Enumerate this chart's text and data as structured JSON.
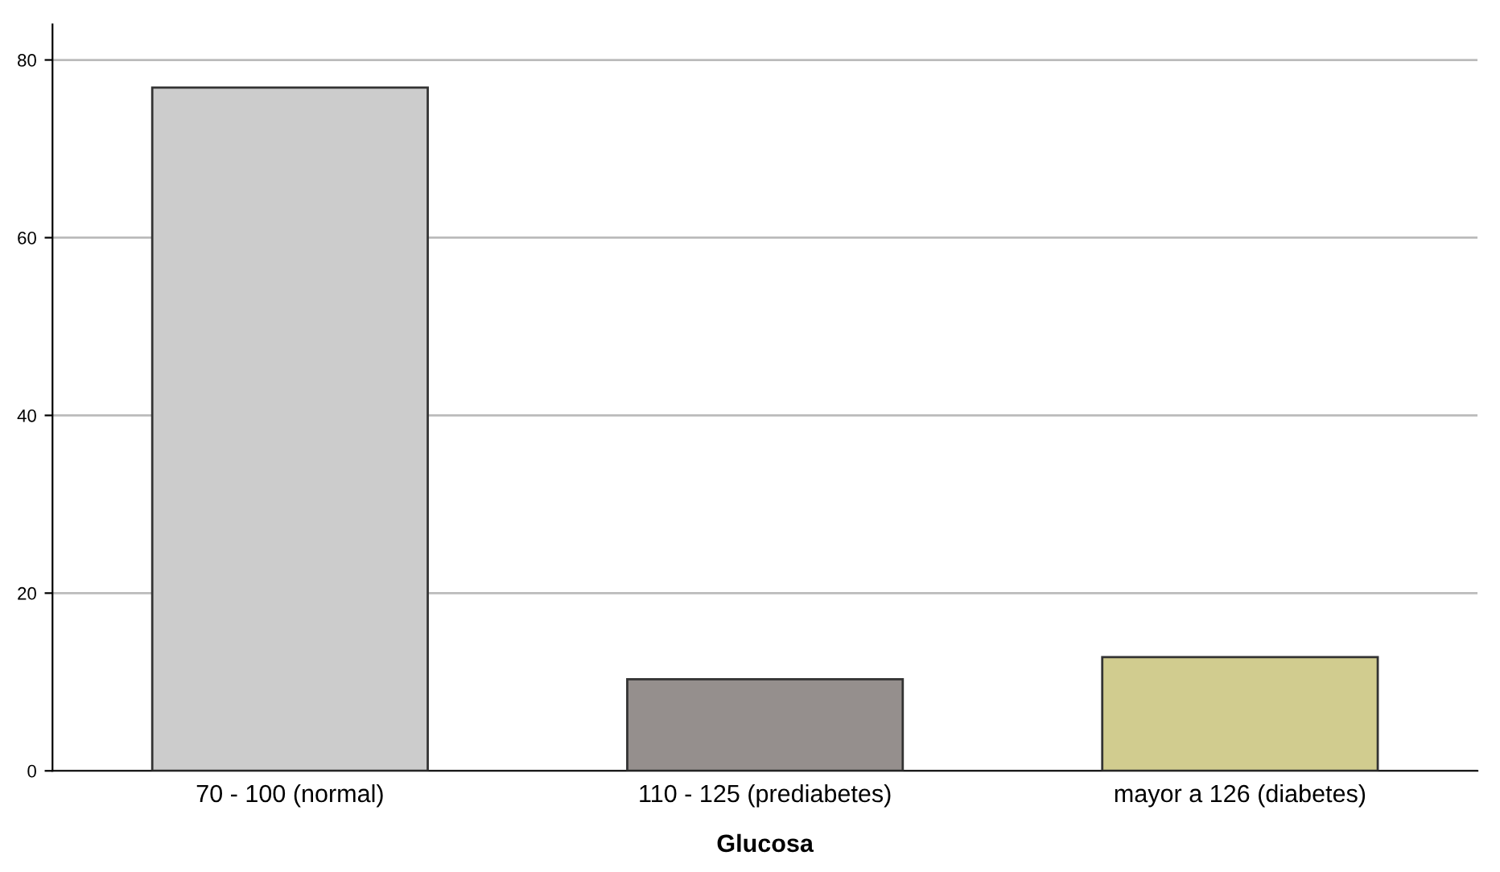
{
  "chart_data": {
    "type": "bar",
    "xlabel": "Glucosa",
    "categories": [
      "70 - 100 (normal)",
      "110 - 125 (prediabetes)",
      "mayor a 126 (diabetes)"
    ],
    "values": [
      76.9,
      10.3,
      12.8
    ],
    "colors": [
      "#cccccc",
      "#958f8d",
      "#d1cc8f"
    ],
    "ylim": [
      0,
      84
    ],
    "yticks": [
      0,
      20,
      40,
      60,
      80
    ],
    "grid": "y"
  }
}
